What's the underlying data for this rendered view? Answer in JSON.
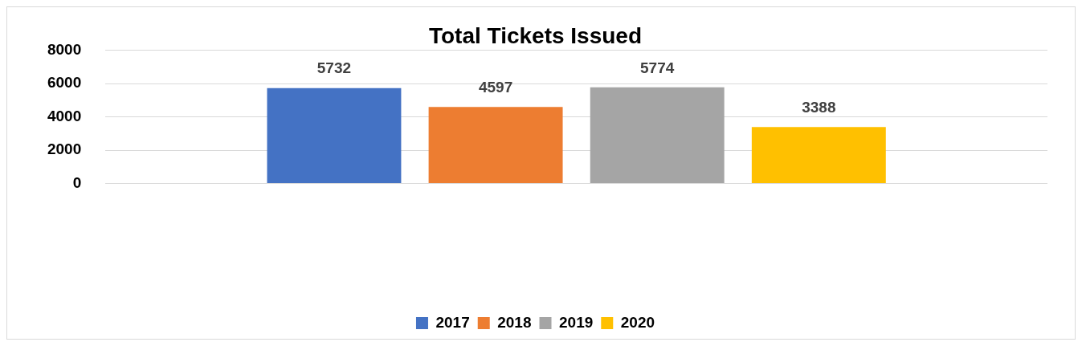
{
  "chart_data": {
    "type": "bar",
    "title": "Total Tickets Issued",
    "categories": [
      null
    ],
    "series": [
      {
        "name": "2017",
        "color": "#4472c4",
        "values": [
          5732
        ]
      },
      {
        "name": "2018",
        "color": "#ed7d31",
        "values": [
          4597
        ]
      },
      {
        "name": "2019",
        "color": "#a5a5a5",
        "values": [
          5774
        ]
      },
      {
        "name": "2020",
        "color": "#ffc000",
        "values": [
          3388
        ]
      }
    ],
    "ylim": [
      0,
      8000
    ],
    "yticks": [
      0,
      {
        "value": 2000,
        "label": "2000"
      },
      {
        "value": 4000,
        "label": "4000"
      },
      {
        "value": 6000,
        "label": "6000"
      },
      {
        "value": 8000,
        "label": "8000"
      }
    ],
    "grid": "y",
    "legend": "bottom",
    "data_labels": true
  }
}
